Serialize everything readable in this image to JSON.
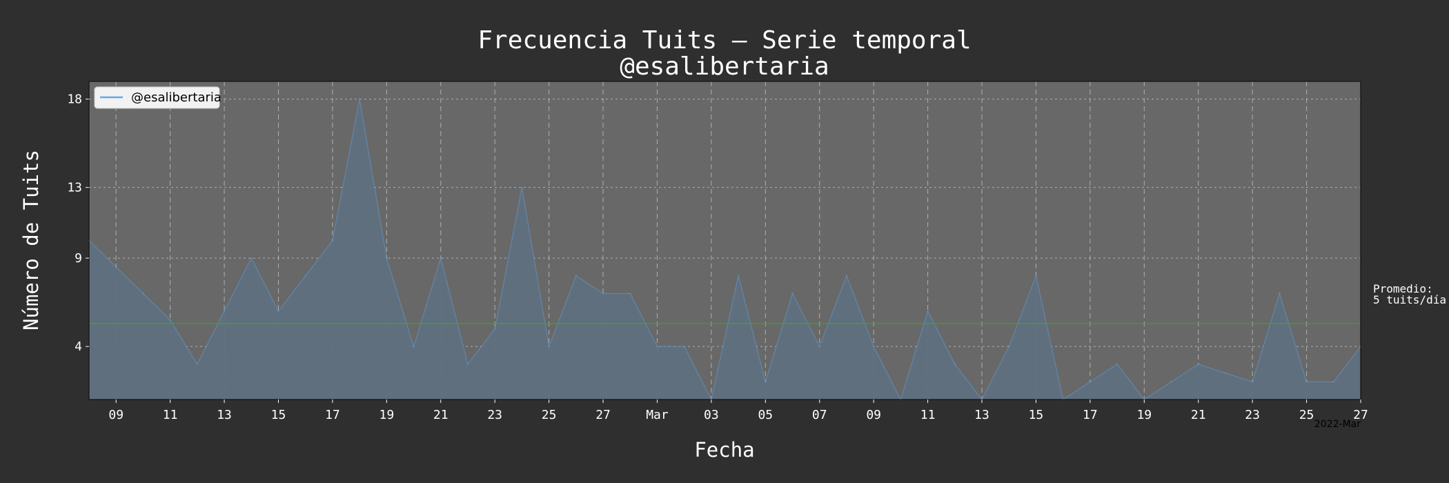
{
  "chart_data": {
    "type": "area",
    "title": "Frecuencia Tuits – Serie temporal",
    "subtitle": "@esalibertaria",
    "xlabel": "Fecha",
    "ylabel": "Número de Tuits",
    "x_offset_label": "2022-Mar",
    "x_range": [
      "2022-02-08",
      "2022-03-27"
    ],
    "ylim": [
      1,
      19
    ],
    "yticks": [
      4,
      9,
      13,
      18
    ],
    "xticks": [
      {
        "date": "2022-02-09",
        "label": "09"
      },
      {
        "date": "2022-02-11",
        "label": "11"
      },
      {
        "date": "2022-02-13",
        "label": "13"
      },
      {
        "date": "2022-02-15",
        "label": "15"
      },
      {
        "date": "2022-02-17",
        "label": "17"
      },
      {
        "date": "2022-02-19",
        "label": "19"
      },
      {
        "date": "2022-02-21",
        "label": "21"
      },
      {
        "date": "2022-02-23",
        "label": "23"
      },
      {
        "date": "2022-02-25",
        "label": "25"
      },
      {
        "date": "2022-02-27",
        "label": "27"
      },
      {
        "date": "2022-03-01",
        "label": "Mar"
      },
      {
        "date": "2022-03-03",
        "label": "03"
      },
      {
        "date": "2022-03-05",
        "label": "05"
      },
      {
        "date": "2022-03-07",
        "label": "07"
      },
      {
        "date": "2022-03-09",
        "label": "09"
      },
      {
        "date": "2022-03-11",
        "label": "11"
      },
      {
        "date": "2022-03-13",
        "label": "13"
      },
      {
        "date": "2022-03-15",
        "label": "15"
      },
      {
        "date": "2022-03-17",
        "label": "17"
      },
      {
        "date": "2022-03-19",
        "label": "19"
      },
      {
        "date": "2022-03-21",
        "label": "21"
      },
      {
        "date": "2022-03-23",
        "label": "23"
      },
      {
        "date": "2022-03-25",
        "label": "25"
      },
      {
        "date": "2022-03-27",
        "label": "27"
      }
    ],
    "grid": true,
    "legend_position": "top-left",
    "series": [
      {
        "name": "@esalibertaria",
        "color": "#5fa8e8",
        "fill_color": "#607080",
        "x": [
          "2022-02-08",
          "2022-02-09",
          "2022-02-10",
          "2022-02-11",
          "2022-02-12",
          "2022-02-13",
          "2022-02-14",
          "2022-02-15",
          "2022-02-16",
          "2022-02-17",
          "2022-02-18",
          "2022-02-19",
          "2022-02-20",
          "2022-02-21",
          "2022-02-22",
          "2022-02-23",
          "2022-02-24",
          "2022-02-25",
          "2022-02-26",
          "2022-02-27",
          "2022-02-28",
          "2022-03-01",
          "2022-03-02",
          "2022-03-03",
          "2022-03-04",
          "2022-03-05",
          "2022-03-06",
          "2022-03-07",
          "2022-03-08",
          "2022-03-09",
          "2022-03-10",
          "2022-03-11",
          "2022-03-12",
          "2022-03-13",
          "2022-03-14",
          "2022-03-15",
          "2022-03-16",
          "2022-03-17",
          "2022-03-18",
          "2022-03-19",
          "2022-03-20",
          "2022-03-21",
          "2022-03-22",
          "2022-03-23",
          "2022-03-24",
          "2022-03-25",
          "2022-03-26",
          "2022-03-27"
        ],
        "values": [
          10,
          8.5,
          7,
          5.5,
          3,
          6,
          9,
          6,
          8,
          10,
          18,
          9,
          4,
          9,
          3,
          5,
          13,
          4,
          8,
          7,
          7,
          4,
          4,
          1,
          8,
          2,
          7,
          4,
          8,
          4,
          1,
          6,
          3,
          1,
          4,
          8,
          1,
          2,
          3,
          1,
          2,
          3,
          2.5,
          2,
          7,
          2,
          2,
          4
        ]
      }
    ],
    "average": {
      "value": 5.3,
      "color": "#3ca02c",
      "label_line1": "Promedio:",
      "label_line2": "5 tuits/día"
    },
    "colors": {
      "background": "#2f2f2f",
      "plot_background": "#686868",
      "grid": "#bcbcbc"
    }
  }
}
